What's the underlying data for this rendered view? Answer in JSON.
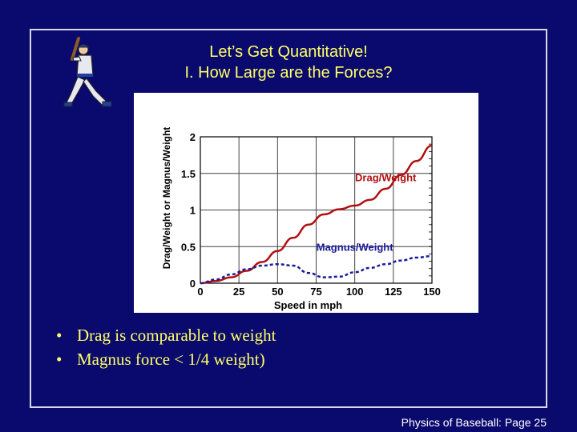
{
  "slide": {
    "title_line1": "Let’s Get Quantitative!",
    "title_line2": "I.  How Large are the Forces?",
    "bullets": [
      "Drag is comparable to weight",
      "Magnus force < 1/4 weight)"
    ],
    "footer": "Physics of Baseball:  Page 25"
  },
  "colors": {
    "background": "#0a0a6e",
    "title": "#ffff66",
    "drag": "#b01010",
    "magnus": "#1a1a9a"
  },
  "chart_data": {
    "type": "line",
    "xlabel": "Speed in mph",
    "ylabel": "Drag/Weight or Magnus/Weight",
    "xlim": [
      0,
      150
    ],
    "ylim": [
      0,
      2
    ],
    "xticks": [
      0,
      25,
      50,
      75,
      100,
      125,
      150
    ],
    "yticks": [
      0,
      0.5,
      1,
      1.5,
      2
    ],
    "ytick_labels": [
      "0",
      "0.5",
      "1",
      "1.5",
      "2"
    ],
    "grid": true,
    "series": [
      {
        "name": "Drag/Weight",
        "style": "solid",
        "color": "#b01010",
        "x": [
          0,
          10,
          20,
          30,
          40,
          50,
          60,
          70,
          80,
          90,
          100,
          110,
          120,
          130,
          140,
          150
        ],
        "y": [
          0,
          0.03,
          0.08,
          0.17,
          0.29,
          0.44,
          0.62,
          0.8,
          0.94,
          1.01,
          1.06,
          1.14,
          1.29,
          1.48,
          1.67,
          1.88
        ]
      },
      {
        "name": "Magnus/Weight",
        "style": "dashed",
        "color": "#1a1a9a",
        "x": [
          0,
          10,
          20,
          30,
          40,
          50,
          60,
          70,
          80,
          90,
          100,
          110,
          120,
          130,
          140,
          150
        ],
        "y": [
          0,
          0.05,
          0.12,
          0.19,
          0.24,
          0.26,
          0.24,
          0.14,
          0.08,
          0.09,
          0.15,
          0.21,
          0.26,
          0.31,
          0.35,
          0.37
        ]
      }
    ]
  }
}
